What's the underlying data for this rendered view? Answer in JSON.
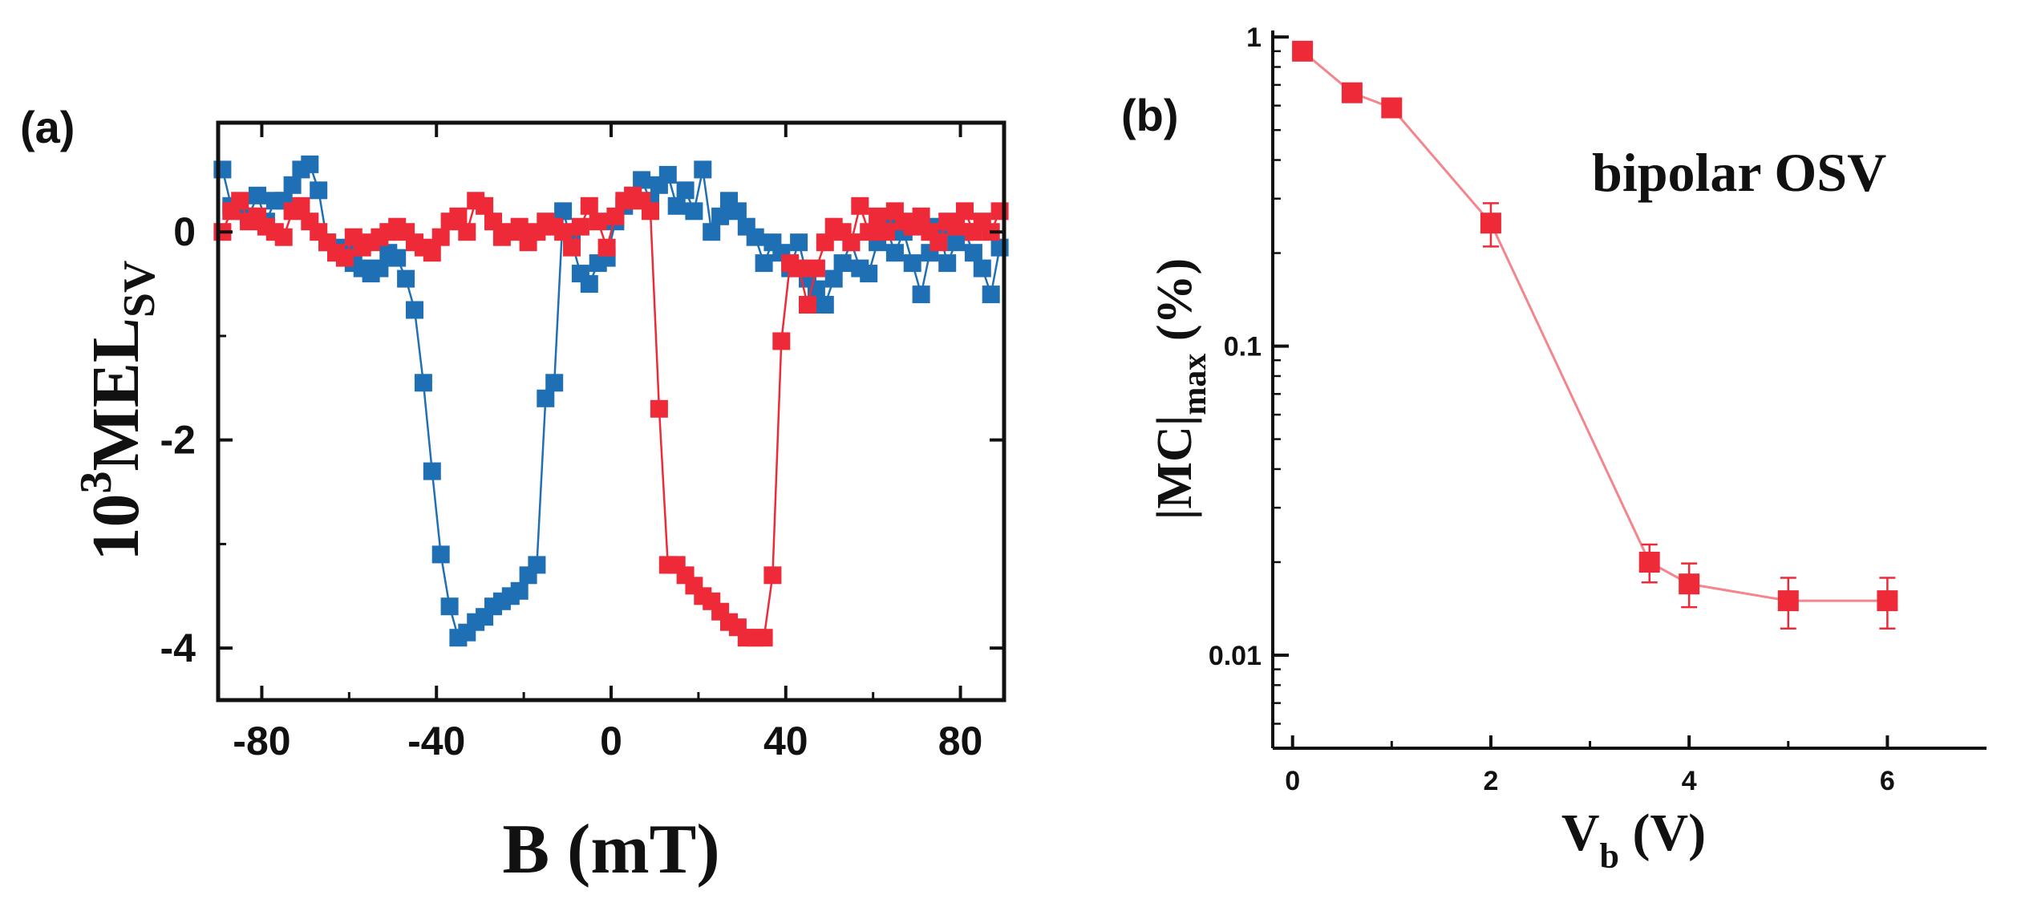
{
  "chart_data": [
    {
      "panel": "(a)",
      "type": "scatter",
      "xlabel": "B (mT)",
      "ylabel_main": "10",
      "ylabel_sup": "3",
      "ylabel_rest": "MEL",
      "ylabel_sub": "SV",
      "xlim": [
        -90,
        90
      ],
      "ylim": [
        -4.5,
        1.05
      ],
      "xticks": [
        -80,
        -40,
        0,
        40,
        80
      ],
      "yticks": [
        0,
        -2,
        -4
      ],
      "colors": {
        "blue": "#1f6fb5",
        "red": "#ee2a38"
      },
      "series": [
        {
          "name": "blue",
          "x": [
            -89,
            -87,
            -85,
            -83,
            -81,
            -79,
            -77,
            -75,
            -73,
            -71,
            -69,
            -67,
            -65,
            -63,
            -61,
            -59,
            -57,
            -55,
            -53,
            -51,
            -49,
            -47,
            -45,
            -43,
            -41,
            -39,
            -37,
            -35,
            -33,
            -31,
            -29,
            -27,
            -25,
            -23,
            -21,
            -19,
            -17,
            -15,
            -13,
            -11,
            -9,
            -7,
            -5,
            -3,
            -1,
            1,
            3,
            5,
            7,
            9,
            11,
            13,
            15,
            17,
            19,
            21,
            23,
            25,
            27,
            29,
            31,
            33,
            35,
            37,
            39,
            41,
            43,
            45,
            47,
            49,
            51,
            53,
            55,
            57,
            59,
            61,
            63,
            65,
            67,
            69,
            71,
            73,
            75,
            77,
            79,
            81,
            83,
            85,
            87,
            89
          ],
          "y": [
            0.6,
            0.25,
            0.2,
            0.15,
            0.35,
            0.1,
            0.3,
            0.3,
            0.45,
            0.6,
            0.65,
            0.4,
            -0.1,
            -0.15,
            -0.2,
            -0.3,
            -0.35,
            -0.4,
            -0.35,
            -0.2,
            -0.25,
            -0.45,
            -0.75,
            -1.45,
            -2.3,
            -3.1,
            -3.6,
            -3.9,
            -3.85,
            -3.75,
            -3.7,
            -3.6,
            -3.55,
            -3.5,
            -3.45,
            -3.3,
            -3.2,
            -1.6,
            -1.45,
            0.2,
            -0.1,
            -0.4,
            -0.5,
            -0.3,
            -0.25,
            0.1,
            0.25,
            0.35,
            0.5,
            0.3,
            0.45,
            0.55,
            0.25,
            0.4,
            0.2,
            0.6,
            0.0,
            0.15,
            0.3,
            0.2,
            0.05,
            -0.05,
            -0.3,
            -0.1,
            -0.2,
            -0.35,
            -0.1,
            -0.45,
            -0.55,
            -0.7,
            -0.45,
            -0.3,
            -0.1,
            -0.35,
            -0.4,
            -0.1,
            0.05,
            -0.2,
            0.0,
            -0.3,
            -0.6,
            -0.2,
            0.05,
            -0.3,
            -0.1,
            0.0,
            -0.2,
            -0.35,
            -0.6,
            -0.15
          ]
        },
        {
          "name": "red",
          "x": [
            -89,
            -87,
            -85,
            -83,
            -81,
            -79,
            -77,
            -75,
            -73,
            -71,
            -69,
            -67,
            -65,
            -63,
            -61,
            -59,
            -57,
            -55,
            -53,
            -51,
            -49,
            -47,
            -45,
            -43,
            -41,
            -39,
            -37,
            -35,
            -33,
            -31,
            -29,
            -27,
            -25,
            -23,
            -21,
            -19,
            -17,
            -15,
            -13,
            -11,
            -9,
            -7,
            -5,
            -3,
            -1,
            1,
            3,
            5,
            7,
            9,
            11,
            13,
            15,
            17,
            19,
            21,
            23,
            25,
            27,
            29,
            31,
            33,
            35,
            37,
            39,
            41,
            43,
            45,
            47,
            49,
            51,
            53,
            55,
            57,
            59,
            61,
            63,
            65,
            67,
            69,
            71,
            73,
            75,
            77,
            79,
            81,
            83,
            85,
            87,
            89
          ],
          "y": [
            0.0,
            0.2,
            0.3,
            0.1,
            0.15,
            0.05,
            0.0,
            -0.05,
            0.2,
            0.25,
            0.1,
            0.0,
            -0.1,
            -0.2,
            -0.25,
            -0.05,
            -0.15,
            -0.1,
            -0.05,
            0.0,
            0.05,
            0.0,
            -0.1,
            -0.15,
            -0.2,
            -0.05,
            0.1,
            0.15,
            0.0,
            0.3,
            0.25,
            0.1,
            -0.05,
            0.0,
            0.05,
            -0.1,
            0.0,
            0.1,
            0.05,
            0.0,
            -0.15,
            0.05,
            0.25,
            0.1,
            -0.15,
            0.15,
            0.3,
            0.35,
            0.3,
            0.2,
            -1.7,
            -3.2,
            -3.2,
            -3.3,
            -3.4,
            -3.5,
            -3.55,
            -3.65,
            -3.75,
            -3.8,
            -3.9,
            -3.9,
            -3.9,
            -3.3,
            -1.05,
            -0.3,
            -0.35,
            -0.7,
            -0.35,
            -0.1,
            0.05,
            0.0,
            -0.1,
            0.25,
            0.0,
            0.15,
            0.0,
            0.2,
            0.1,
            0.05,
            0.15,
            0.0,
            -0.1,
            0.1,
            0.05,
            0.2,
            0.0,
            0.1,
            0.0,
            0.2
          ]
        }
      ]
    },
    {
      "panel": "(b)",
      "type": "line",
      "xlabel_main": "V",
      "xlabel_sub": "b",
      "xlabel_rest": " (V)",
      "ylabel_main": "|MC|",
      "ylabel_sub": "max",
      "ylabel_rest": " (%)",
      "yscale": "log",
      "xlim": [
        -0.2,
        7.0
      ],
      "ylim": [
        0.005,
        1.05
      ],
      "xticks": [
        0,
        2,
        4,
        6
      ],
      "yticks": [
        1,
        0.1,
        0.01
      ],
      "ytick_labels": [
        "1",
        "0.1",
        "0.01"
      ],
      "annotation": "bipolar OSV",
      "color": "#ee2a38",
      "series": [
        {
          "name": "bipolar OSV",
          "x": [
            0.1,
            0.6,
            1.0,
            2.0,
            3.6,
            4.0,
            5.0,
            6.0
          ],
          "y": [
            0.9,
            0.66,
            0.59,
            0.25,
            0.02,
            0.017,
            0.015,
            0.015
          ],
          "err_low": [
            0.9,
            0.66,
            0.59,
            0.21,
            0.0172,
            0.0143,
            0.0122,
            0.0122
          ],
          "err_high": [
            0.9,
            0.66,
            0.59,
            0.29,
            0.0228,
            0.0198,
            0.0178,
            0.0178
          ]
        }
      ]
    }
  ]
}
